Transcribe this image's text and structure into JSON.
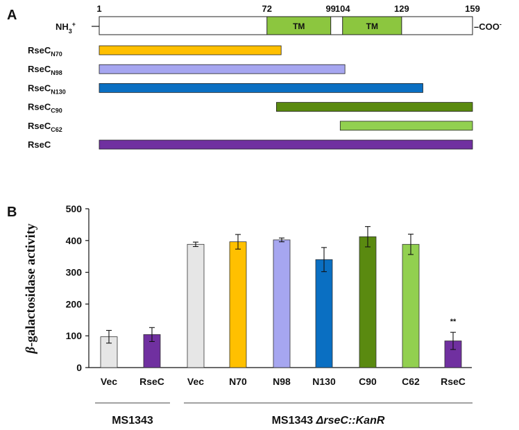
{
  "panel_a": {
    "label": "A",
    "nterm": {
      "main": "NH",
      "sub": "3",
      "sup": "+"
    },
    "cterm": {
      "main": "COO",
      "sup": "-"
    },
    "protein_length": 159,
    "positions": [
      {
        "value": 1,
        "text": "1"
      },
      {
        "value": 72,
        "text": "72"
      },
      {
        "value": 99,
        "text": "99"
      },
      {
        "value": 104,
        "text": "104"
      },
      {
        "value": 129,
        "text": "129"
      },
      {
        "value": 159,
        "text": "159"
      }
    ],
    "tm_domains": [
      {
        "label": "TM",
        "start": 72,
        "end": 99,
        "color": "#8cc63f"
      },
      {
        "label": "TM",
        "start": 104,
        "end": 129,
        "color": "#8cc63f"
      }
    ],
    "constructs": [
      {
        "name": "RseC",
        "sub": "N70",
        "start": 1,
        "end": 78,
        "color": "#ffc000"
      },
      {
        "name": "RseC",
        "sub": "N98",
        "start": 1,
        "end": 105,
        "color": "#a6a6f0"
      },
      {
        "name": "RseC",
        "sub": "N130",
        "start": 1,
        "end": 138,
        "color": "#0a6fc2"
      },
      {
        "name": "RseC",
        "sub": "C90",
        "start": 76,
        "end": 159,
        "color": "#5a8a10"
      },
      {
        "name": "RseC",
        "sub": "C62",
        "start": 103,
        "end": 159,
        "color": "#92d050"
      },
      {
        "name": "RseC",
        "sub": "",
        "start": 1,
        "end": 159,
        "color": "#7030a0"
      }
    ]
  },
  "chart_data": {
    "panel_label": "B",
    "type": "bar",
    "ylabel_italic": "β",
    "ylabel_rest": "-galactosidase activity",
    "ylim": [
      0,
      500
    ],
    "yticks": [
      0,
      100,
      200,
      300,
      400,
      500
    ],
    "categories": [
      "Vec",
      "RseC",
      "Vec",
      "N70",
      "N98",
      "N130",
      "C90",
      "C62",
      "RseC"
    ],
    "values": [
      97,
      104,
      388,
      396,
      402,
      340,
      412,
      388,
      84
    ],
    "errors": [
      20,
      22,
      7,
      23,
      6,
      38,
      32,
      32,
      27
    ],
    "colors": [
      "#e6e6e6",
      "#7030a0",
      "#e6e6e6",
      "#ffc000",
      "#a6a6f0",
      "#0a6fc2",
      "#5a8a10",
      "#92d050",
      "#7030a0"
    ],
    "annotations": [
      {
        "index": 8,
        "text": "**"
      }
    ],
    "groups": [
      {
        "label": "MS1343",
        "first": 0,
        "last": 1
      },
      {
        "label_prefix": "MS1343 ",
        "label_delta": "Δ",
        "label_gene": "rseC::KanR",
        "first": 2,
        "last": 8
      }
    ]
  }
}
